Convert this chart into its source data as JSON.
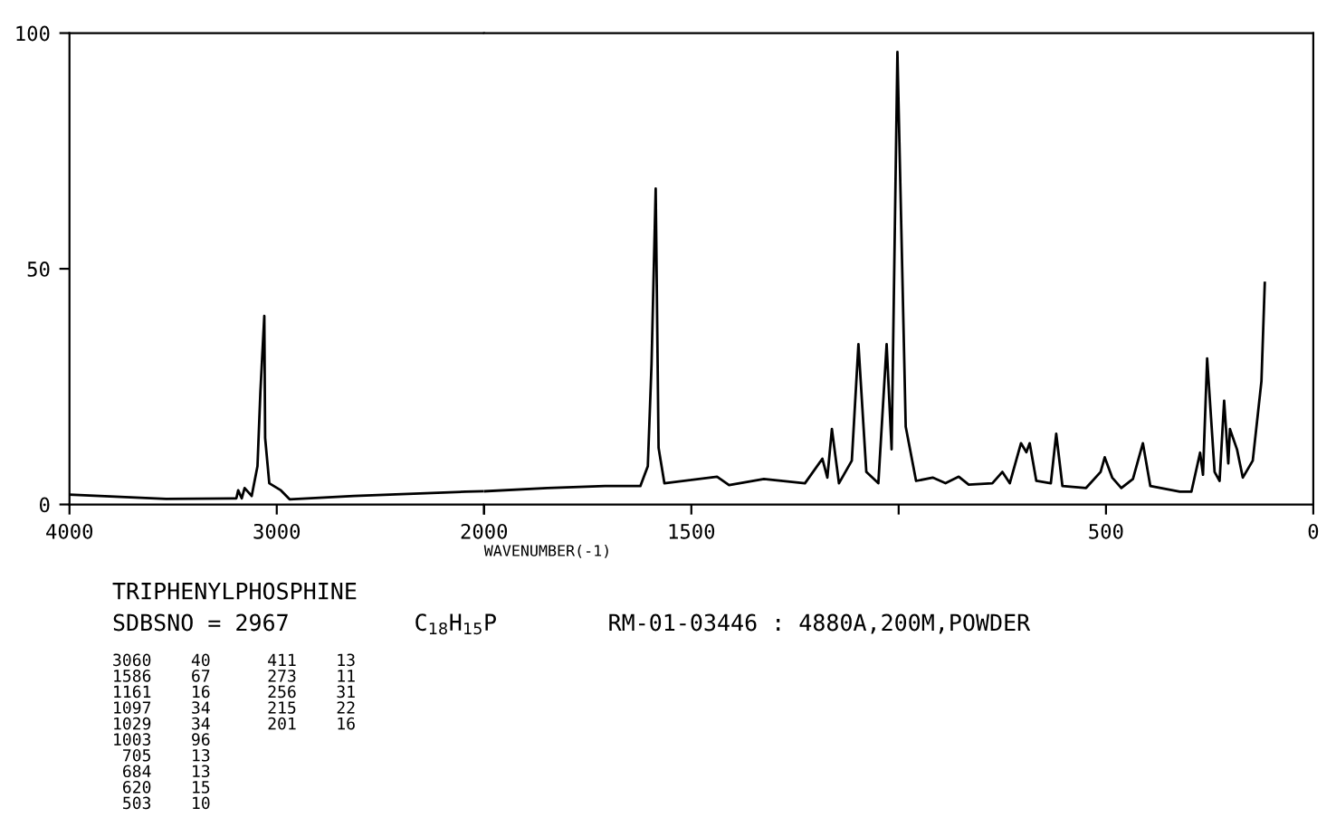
{
  "chart_data": [
    {
      "type": "line",
      "title": "TRIPHENYLPHOSPHINE",
      "x": [
        4000,
        3534,
        3195,
        3186,
        3169,
        3155,
        3121,
        3093,
        3079,
        3060,
        3056,
        3036,
        2980,
        2938,
        2627,
        2090,
        2000
      ],
      "series": [
        {
          "color": "#000000",
          "values": [
            2.1,
            1.2,
            1.3,
            3.0,
            1.3,
            3.5,
            1.8,
            8.1,
            23.8,
            40,
            14.1,
            4.5,
            3.0,
            1.1,
            1.8,
            2.7,
            2.8
          ]
        }
      ],
      "xlim": [
        4000,
        2000
      ],
      "xticks": [
        4000,
        3000,
        {
          "value": 2000,
          "label": null
        }
      ],
      "ylim": [
        0,
        100
      ],
      "yticks": [
        0,
        50,
        100
      ],
      "grid": false,
      "legend": false,
      "marker": "none",
      "line_style": "solid",
      "annotations": [
        "SDBSNO = 2967",
        "C$_{18}$H$_{15}$P",
        "RM-01-03446 : 4880A,200M,POWDER",
        "3060    40\n1586    67\n1161    16\n1097    34\n1029    34\n1003    96\n 705    13\n 684    13\n 620    15\n 503    10",
        "411    13\n273    11\n256    31\n215    22\n201    16"
      ]
    },
    {
      "type": "line",
      "xlabel": "WAVENUMBER(-1)",
      "x": [
        2000,
        1847,
        1708,
        1623,
        1605,
        1596,
        1586,
        1579,
        1565,
        1438,
        1409,
        1325,
        1226,
        1184,
        1172,
        1161,
        1144,
        1113,
        1097,
        1078,
        1049,
        1029,
        1017,
        1003,
        983,
        958,
        918,
        887,
        855,
        831,
        774,
        750,
        732,
        705,
        692,
        684,
        668,
        633,
        620,
        605,
        548,
        513,
        503,
        485,
        463,
        435,
        411,
        393,
        322,
        294,
        273,
        266,
        256,
        238,
        226,
        215,
        205,
        201,
        184,
        170,
        146,
        125,
        117
      ],
      "series": [
        {
          "color": "#000000",
          "values": [
            2.8,
            3.5,
            3.9,
            3.9,
            8.1,
            29.8,
            67,
            12,
            4.5,
            5.9,
            4.1,
            5.4,
            4.5,
            9.7,
            5.7,
            16,
            4.5,
            9.3,
            34,
            6.9,
            4.5,
            34,
            11.7,
            96,
            16.5,
            5,
            5.7,
            4.5,
            5.9,
            4.2,
            4.5,
            6.9,
            4.5,
            13,
            11.1,
            13,
            5,
            4.5,
            15,
            3.9,
            3.5,
            6.9,
            10,
            5.7,
            3.5,
            5.4,
            13,
            3.9,
            2.7,
            2.7,
            11,
            6.3,
            31,
            6.9,
            5,
            22,
            8.7,
            16,
            11.7,
            5.7,
            9.3,
            26.2,
            47
          ]
        }
      ],
      "xlim": [
        2000,
        0
      ],
      "xticks": [
        2000,
        1500,
        {
          "value": 1000,
          "label": null
        },
        500,
        0
      ],
      "ylim": [
        0,
        100
      ],
      "tick_labels": "x",
      "grid": false,
      "legend": false,
      "marker": "none",
      "line_style": "solid"
    }
  ]
}
